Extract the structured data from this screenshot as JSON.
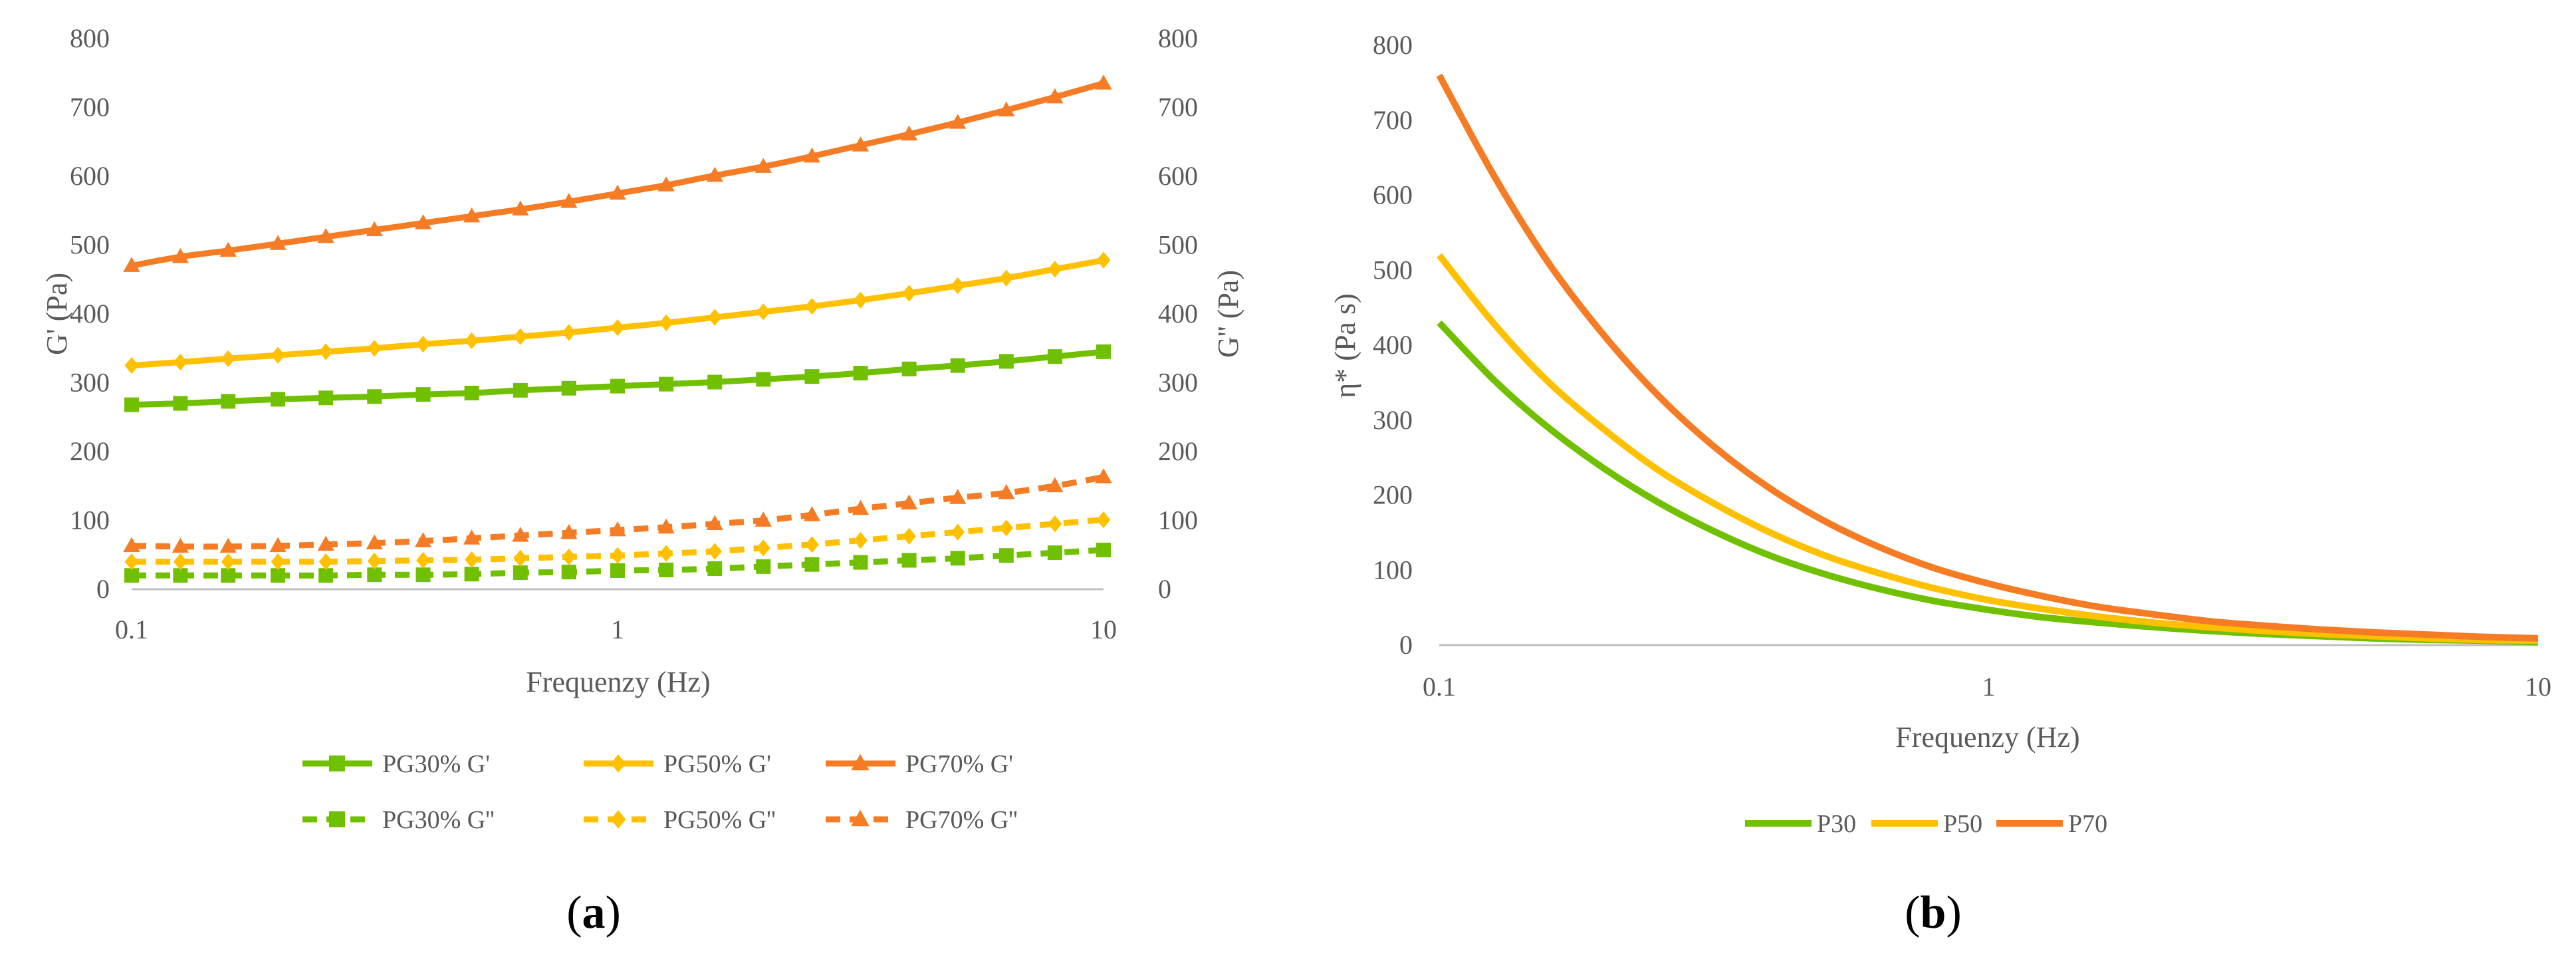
{
  "chart_data": [
    {
      "type": "line",
      "panel_label": "(a)",
      "xscale": "log",
      "xlim": [
        0.1,
        10
      ],
      "x_ticks": [
        "0.1",
        "1",
        "10"
      ],
      "xlabel": "Frequenzy (Hz)",
      "ylabel_left": "G' (Pa)",
      "ylabel_right": "G'' (Pa)",
      "ylim": [
        0,
        800
      ],
      "y_ticks": [
        "0",
        "100",
        "200",
        "300",
        "400",
        "500",
        "600",
        "700",
        "800"
      ],
      "legend_position": "bottom",
      "x": [
        0.1,
        0.126,
        0.158,
        0.2,
        0.251,
        0.316,
        0.398,
        0.501,
        0.631,
        0.794,
        1.0,
        1.259,
        1.585,
        1.995,
        2.512,
        3.162,
        3.981,
        5.012,
        6.31,
        7.943,
        10.0
      ],
      "series": [
        {
          "name": "PG30% G'",
          "color": "#70c000",
          "dash": "solid",
          "marker": "square",
          "values": [
            268,
            270,
            273,
            276,
            278,
            280,
            283,
            285,
            289,
            292,
            295,
            298,
            301,
            305,
            309,
            314,
            320,
            325,
            331,
            338,
            345
          ]
        },
        {
          "name": "PG50% G'",
          "color": "#ffc000",
          "dash": "solid",
          "marker": "diamond",
          "values": [
            325,
            330,
            335,
            340,
            345,
            350,
            356,
            361,
            367,
            373,
            380,
            387,
            395,
            403,
            411,
            420,
            430,
            441,
            452,
            465,
            478
          ]
        },
        {
          "name": "PG70% G'",
          "color": "#f57c24",
          "dash": "solid",
          "marker": "triangle",
          "values": [
            470,
            483,
            492,
            502,
            512,
            522,
            532,
            542,
            552,
            563,
            575,
            587,
            601,
            614,
            629,
            645,
            661,
            678,
            696,
            715,
            735
          ]
        },
        {
          "name": "PG30% G''",
          "color": "#70c000",
          "dash": "dashed",
          "marker": "square",
          "values": [
            20,
            20,
            20,
            20,
            20,
            21,
            21,
            22,
            24,
            25,
            27,
            28,
            30,
            33,
            36,
            39,
            42,
            45,
            49,
            53,
            57
          ]
        },
        {
          "name": "PG50% G''",
          "color": "#ffc000",
          "dash": "dashed",
          "marker": "diamond",
          "values": [
            40,
            40,
            40,
            40,
            40,
            41,
            42,
            43,
            45,
            47,
            49,
            52,
            55,
            60,
            65,
            71,
            77,
            83,
            89,
            95,
            101
          ]
        },
        {
          "name": "PG70% G''",
          "color": "#f57c24",
          "dash": "dashed",
          "marker": "triangle",
          "values": [
            63,
            62,
            62,
            63,
            65,
            67,
            70,
            74,
            78,
            82,
            86,
            90,
            95,
            100,
            108,
            117,
            125,
            133,
            140,
            150,
            163
          ]
        }
      ]
    },
    {
      "type": "line",
      "panel_label": "(b)",
      "xscale": "log",
      "xlim": [
        0.1,
        10
      ],
      "x_ticks": [
        "0.1",
        "1",
        "10"
      ],
      "xlabel": "Frequenzy (Hz)",
      "ylabel": "η* (Pa s)",
      "ylim": [
        0,
        800
      ],
      "y_ticks": [
        "0",
        "100",
        "200",
        "300",
        "400",
        "500",
        "600",
        "700",
        "800"
      ],
      "legend_position": "bottom",
      "x": [
        0.1,
        0.126,
        0.158,
        0.2,
        0.251,
        0.316,
        0.398,
        0.501,
        0.631,
        0.794,
        1.0,
        1.259,
        1.585,
        1.995,
        2.512,
        3.162,
        3.981,
        5.012,
        6.31,
        7.943,
        10.0
      ],
      "series": [
        {
          "name": "P30",
          "color": "#70c000",
          "values": [
            430,
            353,
            290,
            235,
            190,
            152,
            120,
            95,
            75,
            59,
            47,
            37,
            30,
            24,
            19,
            15,
            12,
            9,
            7,
            6,
            4
          ]
        },
        {
          "name": "P50",
          "color": "#ffc000",
          "values": [
            520,
            428,
            351,
            287,
            233,
            189,
            151,
            120,
            96,
            76,
            60,
            48,
            38,
            30,
            24,
            19,
            15,
            12,
            9,
            7,
            6
          ]
        },
        {
          "name": "P70",
          "color": "#f57c24",
          "values": [
            760,
            625,
            510,
            412,
            332,
            265,
            210,
            166,
            131,
            103,
            82,
            65,
            51,
            41,
            32,
            26,
            21,
            17,
            14,
            11,
            9
          ]
        }
      ]
    }
  ]
}
